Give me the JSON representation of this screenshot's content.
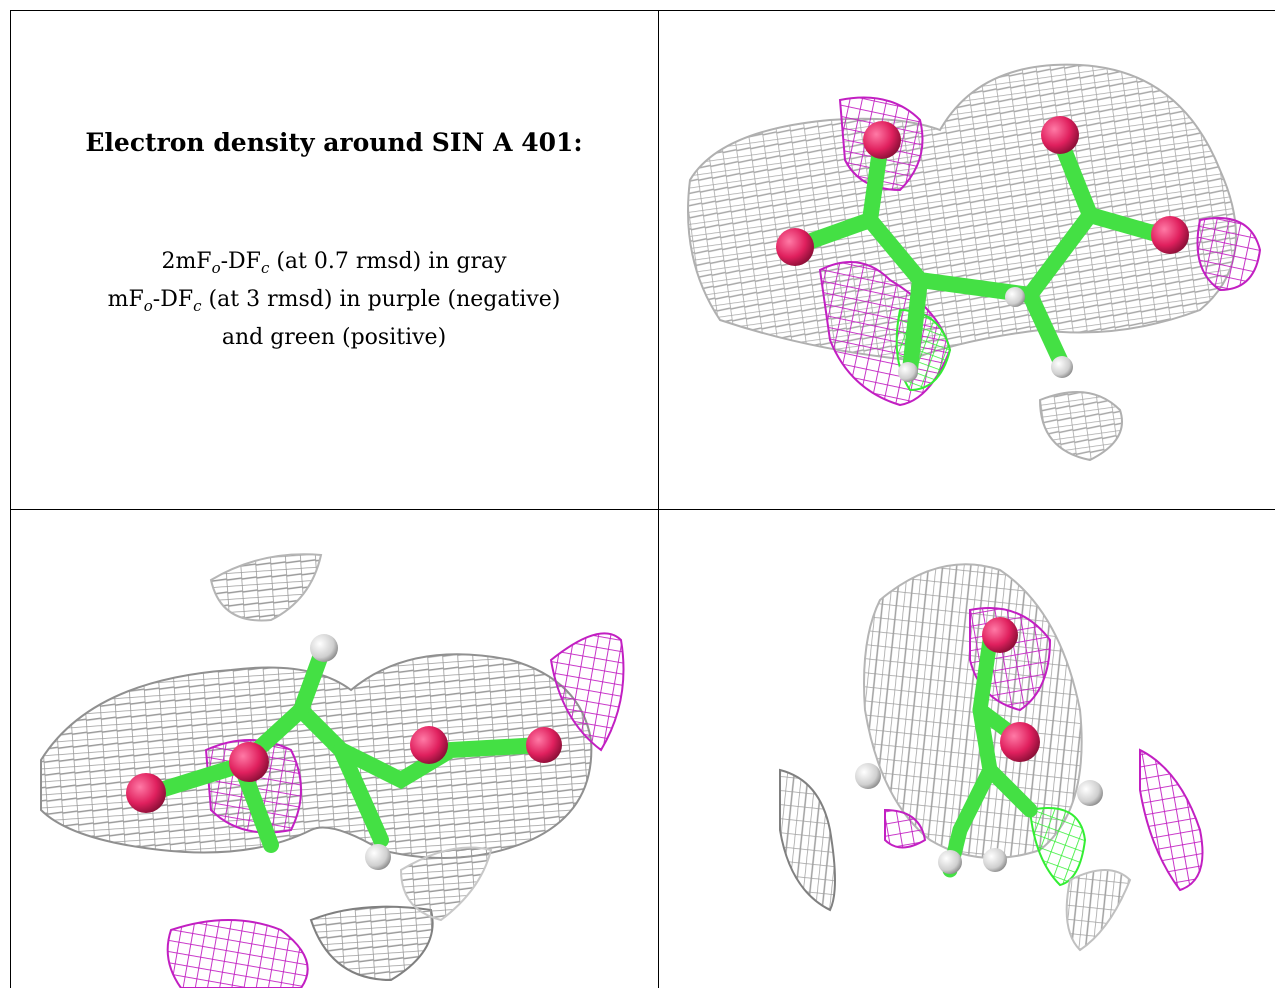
{
  "caption": {
    "title": "Electron density around SIN A 401:",
    "line1_prefix": "2mF",
    "line1_sub1": "o",
    "line1_mid": "-DF",
    "line1_sub2": "c",
    "line1_suffix": " (at 0.7 rmsd) in gray",
    "line2_prefix": "mF",
    "line2_sub1": "o",
    "line2_mid": "-DF",
    "line2_sub2": "c",
    "line2_suffix": " (at 3 rmsd) in purple (negative)",
    "line3": "and green (positive)"
  },
  "colors": {
    "gray_mesh": "#9a9a9a",
    "gray_mesh_light": "#c8c8c8",
    "purple_mesh": "#c21fc2",
    "green_mesh": "#33ee33",
    "carbon": "#44e044",
    "oxygen": "#e0205e",
    "hydrogen": "#dcdcdc"
  },
  "panels": [
    {
      "id": "view-1",
      "icon": "mesh-view-icon"
    },
    {
      "id": "view-2",
      "icon": "mesh-view-icon"
    },
    {
      "id": "view-3",
      "icon": "mesh-view-icon"
    }
  ]
}
